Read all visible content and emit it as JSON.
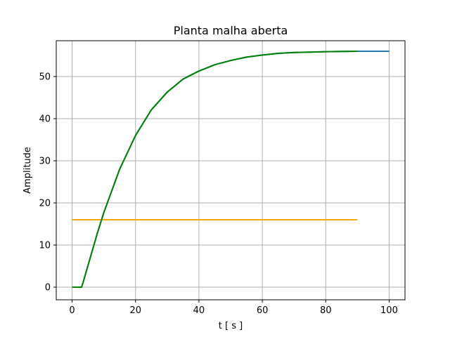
{
  "chart_data": {
    "type": "line",
    "title": "Planta malha aberta",
    "xlabel": "t [ s ]",
    "ylabel": "Amplitude",
    "xlim": [
      -5,
      105
    ],
    "ylim": [
      -3,
      58.5
    ],
    "xticks": [
      0,
      20,
      40,
      60,
      80,
      100
    ],
    "yticks": [
      0,
      10,
      20,
      30,
      40,
      50
    ],
    "grid": true,
    "series": [
      {
        "color": "#1f77b4",
        "x": [
          0,
          3,
          3.5,
          5,
          8,
          10,
          15,
          20,
          25,
          30,
          35,
          40,
          45,
          50,
          55,
          60,
          65,
          70,
          75,
          80,
          85,
          90,
          95,
          100
        ],
        "y": [
          0,
          0,
          1.2,
          5.1,
          12.9,
          17.7,
          28.0,
          36.0,
          42.1,
          46.3,
          49.4,
          51.3,
          52.8,
          53.8,
          54.6,
          55.1,
          55.5,
          55.7,
          55.8,
          55.9,
          55.95,
          56.0,
          56.0,
          56.0
        ]
      },
      {
        "color": "#ffa500",
        "x": [
          0,
          90
        ],
        "y": [
          16,
          16
        ]
      },
      {
        "color": "#008000",
        "x": [
          0,
          3,
          3.5,
          5,
          8,
          10,
          15,
          20,
          25,
          30,
          35,
          40,
          45,
          50,
          55,
          60,
          65,
          70,
          75,
          80,
          85,
          90
        ],
        "y": [
          0,
          0,
          1.2,
          5.1,
          12.9,
          17.7,
          28.0,
          36.0,
          42.1,
          46.3,
          49.4,
          51.3,
          52.8,
          53.8,
          54.6,
          55.1,
          55.5,
          55.7,
          55.8,
          55.9,
          55.95,
          56.0
        ]
      }
    ]
  }
}
